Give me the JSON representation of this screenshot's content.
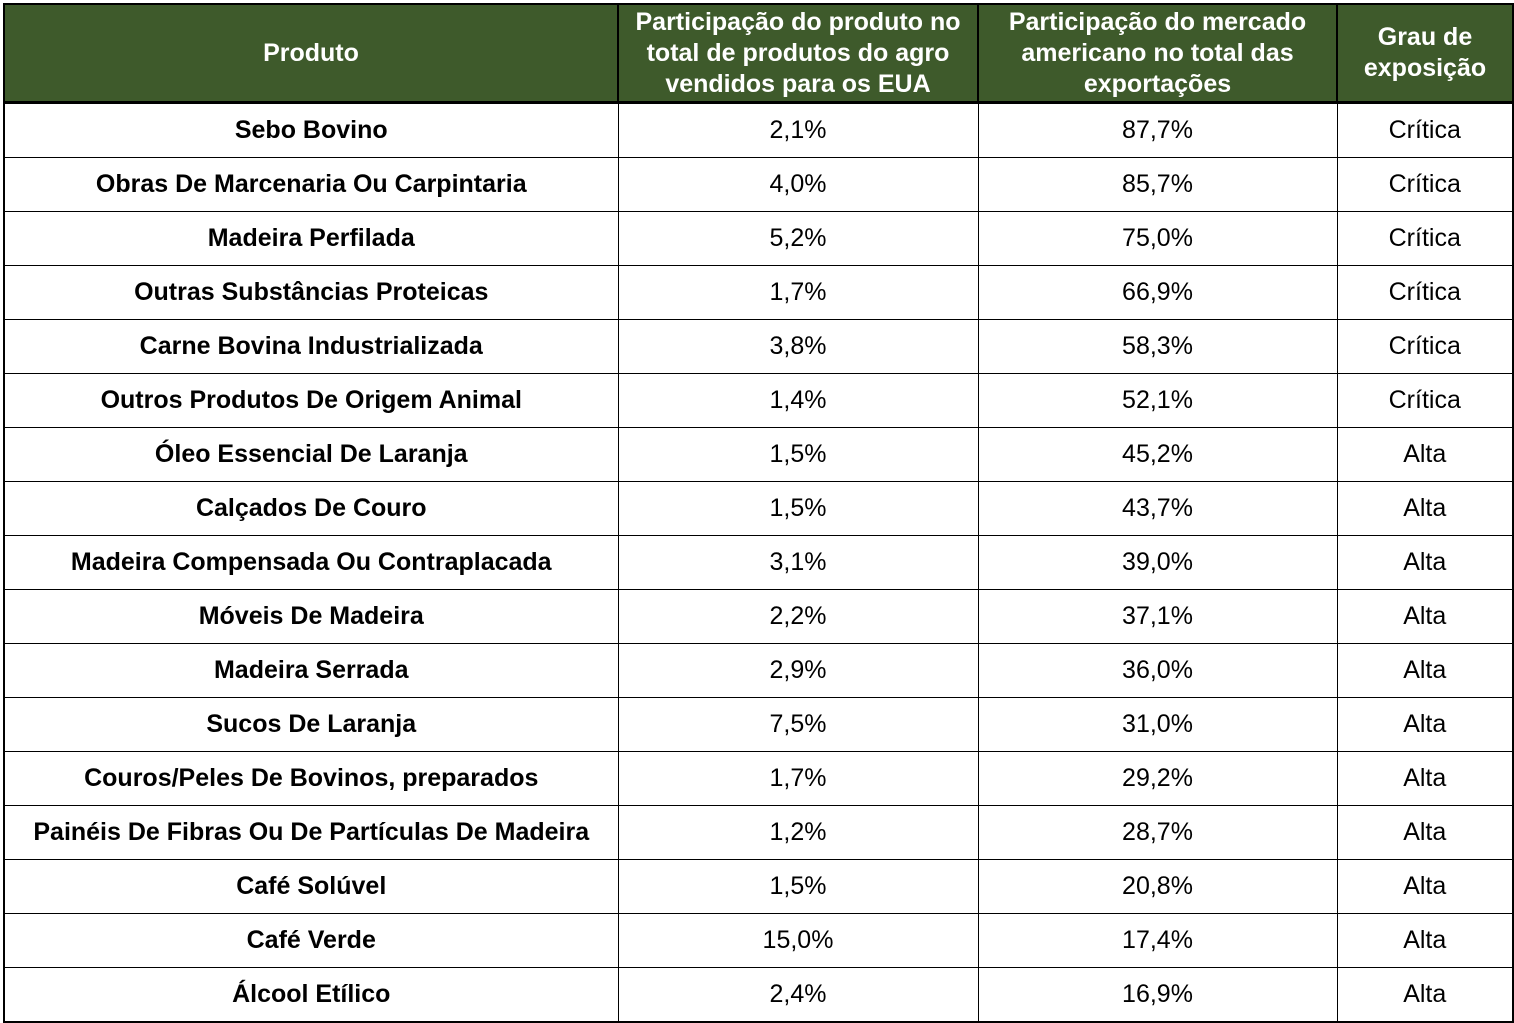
{
  "table": {
    "headers": [
      "Produto",
      "Participação do produto no total de produtos do agro vendidos para os EUA",
      "Participação do mercado americano no total das exportações",
      "Grau de exposição"
    ],
    "rows": [
      [
        "Sebo Bovino",
        "2,1%",
        "87,7%",
        "Crítica"
      ],
      [
        "Obras De Marcenaria Ou Carpintaria",
        "4,0%",
        "85,7%",
        "Crítica"
      ],
      [
        "Madeira Perfilada",
        "5,2%",
        "75,0%",
        "Crítica"
      ],
      [
        "Outras Substâncias Proteicas",
        "1,7%",
        "66,9%",
        "Crítica"
      ],
      [
        "Carne Bovina Industrializada",
        "3,8%",
        "58,3%",
        "Crítica"
      ],
      [
        "Outros Produtos De Origem Animal",
        "1,4%",
        "52,1%",
        "Crítica"
      ],
      [
        "Óleo Essencial De Laranja",
        "1,5%",
        "45,2%",
        "Alta"
      ],
      [
        "Calçados De Couro",
        "1,5%",
        "43,7%",
        "Alta"
      ],
      [
        "Madeira Compensada Ou Contraplacada",
        "3,1%",
        "39,0%",
        "Alta"
      ],
      [
        "Móveis De Madeira",
        "2,2%",
        "37,1%",
        "Alta"
      ],
      [
        "Madeira Serrada",
        "2,9%",
        "36,0%",
        "Alta"
      ],
      [
        "Sucos De Laranja",
        "7,5%",
        "31,0%",
        "Alta"
      ],
      [
        "Couros/Peles De Bovinos, preparados",
        "1,7%",
        "29,2%",
        "Alta"
      ],
      [
        "Painéis De Fibras Ou De Partículas De Madeira",
        "1,2%",
        "28,7%",
        "Alta"
      ],
      [
        "Café Solúvel",
        "1,5%",
        "20,8%",
        "Alta"
      ],
      [
        "Café Verde",
        "15,0%",
        "17,4%",
        "Alta"
      ],
      [
        "Álcool Etílico",
        "2,4%",
        "16,9%",
        "Alta"
      ]
    ]
  },
  "colors": {
    "header_background": "#3e5a2b",
    "header_text": "#ffffff"
  }
}
